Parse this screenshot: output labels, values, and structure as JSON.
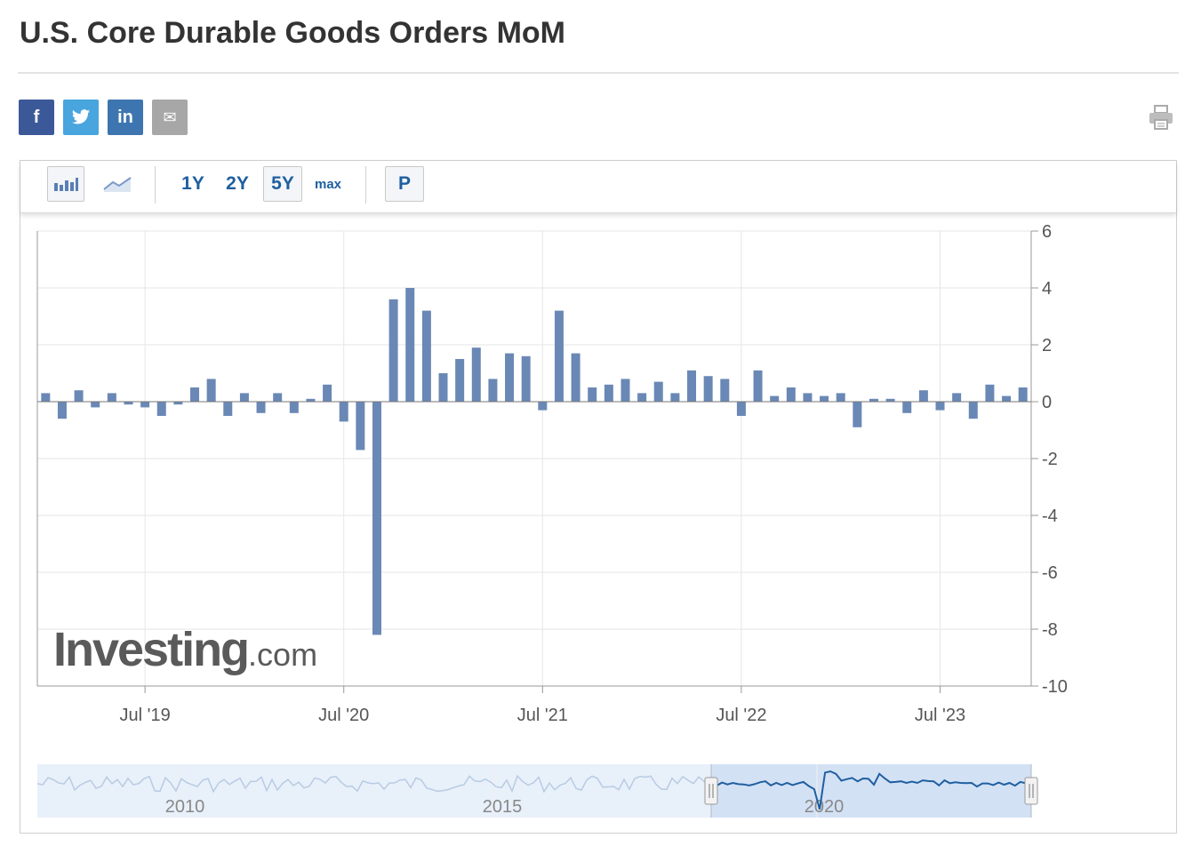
{
  "page": {
    "title": "U.S. Core Durable Goods Orders MoM"
  },
  "share": {
    "facebook_label": "f",
    "twitter_label": "t",
    "linkedin_label": "in",
    "email_label": "✉"
  },
  "toolbar": {
    "range_1y": "1Y",
    "range_2y": "2Y",
    "range_5y": "5Y",
    "range_max": "max",
    "pin_label": "P",
    "active_range": "5Y"
  },
  "watermark": {
    "brand_main": "Investing",
    "brand_suffix": ".com"
  },
  "colors": {
    "bar": "#6a88b5",
    "navigator_line": "#1f5fa0",
    "navigator_bg": "#e8f0fa",
    "navigator_selected": "#d3e1f5"
  },
  "chart_data": {
    "type": "bar",
    "ylim": [
      -10,
      6
    ],
    "yticks": [
      6,
      4,
      2,
      0,
      -2,
      -4,
      -6,
      -8,
      -10
    ],
    "x_tick_labels": [
      "Jul '19",
      "Jul '20",
      "Jul '21",
      "Jul '22",
      "Jul '23"
    ],
    "grid": true,
    "series": [
      {
        "values": [
          0.3,
          -0.6,
          0.4,
          -0.2,
          0.3,
          -0.1,
          -0.2,
          -0.5,
          -0.1,
          0.5,
          0.8,
          -0.5,
          0.3,
          -0.4,
          0.3,
          -0.4,
          0.1,
          0.6,
          -0.7,
          -1.7,
          -8.2,
          3.6,
          4.0,
          3.2,
          1.0,
          1.5,
          1.9,
          0.8,
          1.7,
          1.6,
          -0.3,
          3.2,
          1.7,
          0.5,
          0.6,
          0.8,
          0.3,
          0.7,
          0.3,
          1.1,
          0.9,
          0.8,
          -0.5,
          1.1,
          0.2,
          0.5,
          0.3,
          0.2,
          0.3,
          -0.9,
          0.1,
          0.1,
          -0.4,
          0.4,
          -0.3,
          0.3,
          -0.6,
          0.6,
          0.2,
          0.5
        ]
      }
    ],
    "navigator": {
      "x_tick_labels": [
        "2010",
        "2015",
        "2020"
      ]
    }
  }
}
